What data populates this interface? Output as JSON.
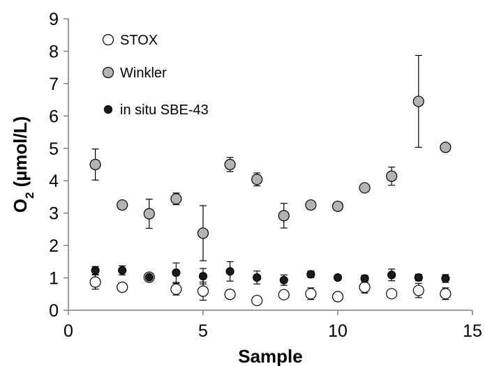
{
  "chart_data": {
    "type": "scatter",
    "title": "",
    "xlabel": "Sample",
    "ylabel": {
      "prefix": "O",
      "subscript": "2",
      "suffix": " (µmol/L)"
    },
    "xlim": [
      0,
      15
    ],
    "ylim": [
      0,
      9
    ],
    "xticks": [
      0,
      5,
      10,
      15
    ],
    "yticks": [
      0,
      1,
      2,
      3,
      4,
      5,
      6,
      7,
      8,
      9
    ],
    "grid": false,
    "legend_position": "top-left",
    "series": [
      {
        "name": "STOX",
        "marker": "open-circle",
        "color": "#000000",
        "fill": "#ffffff",
        "points": [
          {
            "x": 1,
            "y": 0.87,
            "err": 0.22
          },
          {
            "x": 2,
            "y": 0.71,
            "err": 0.08
          },
          {
            "x": 3,
            "y": 1.02,
            "err": 0.05
          },
          {
            "x": 4,
            "y": 0.65,
            "err": 0.18
          },
          {
            "x": 5,
            "y": 0.59,
            "err": 0.28
          },
          {
            "x": 6,
            "y": 0.49,
            "err": 0.08
          },
          {
            "x": 7,
            "y": 0.3,
            "err": 0.05
          },
          {
            "x": 8,
            "y": 0.48,
            "err": 0.08
          },
          {
            "x": 9,
            "y": 0.51,
            "err": 0.18
          },
          {
            "x": 10,
            "y": 0.42,
            "err": 0.05
          },
          {
            "x": 11,
            "y": 0.71,
            "err": 0.18
          },
          {
            "x": 12,
            "y": 0.51,
            "err": 0.1
          },
          {
            "x": 13,
            "y": 0.61,
            "err": 0.22
          },
          {
            "x": 14,
            "y": 0.51,
            "err": 0.18
          }
        ]
      },
      {
        "name": "Winkler",
        "marker": "filled-circle",
        "color": "#000000",
        "fill": "#b3b3b3",
        "points": [
          {
            "x": 1,
            "y": 4.5,
            "err": 0.48
          },
          {
            "x": 2,
            "y": 3.25,
            "err": 0.05
          },
          {
            "x": 3,
            "y": 2.98,
            "err": 0.45
          },
          {
            "x": 4,
            "y": 3.44,
            "err": 0.18
          },
          {
            "x": 5,
            "y": 2.38,
            "err": 0.85
          },
          {
            "x": 6,
            "y": 4.5,
            "err": 0.22
          },
          {
            "x": 7,
            "y": 4.04,
            "err": 0.2
          },
          {
            "x": 8,
            "y": 2.92,
            "err": 0.38
          },
          {
            "x": 9,
            "y": 3.25,
            "err": 0.05
          },
          {
            "x": 10,
            "y": 3.21,
            "err": 0.05
          },
          {
            "x": 11,
            "y": 3.78,
            "err": 0.12
          },
          {
            "x": 12,
            "y": 4.14,
            "err": 0.28
          },
          {
            "x": 13,
            "y": 6.45,
            "err": 1.42
          },
          {
            "x": 14,
            "y": 5.03,
            "err": 0.05
          }
        ]
      },
      {
        "name": "in situ SBE-43",
        "marker": "small-filled-circle",
        "color": "#000000",
        "fill": "#1a1a1a",
        "points": [
          {
            "x": 1,
            "y": 1.23,
            "err": 0.12
          },
          {
            "x": 2,
            "y": 1.23,
            "err": 0.14
          },
          {
            "x": 3,
            "y": 1.02,
            "err": 0.05
          },
          {
            "x": 4,
            "y": 1.16,
            "err": 0.3
          },
          {
            "x": 5,
            "y": 1.05,
            "err": 0.24
          },
          {
            "x": 6,
            "y": 1.2,
            "err": 0.3
          },
          {
            "x": 7,
            "y": 1.01,
            "err": 0.2
          },
          {
            "x": 8,
            "y": 0.93,
            "err": 0.16
          },
          {
            "x": 9,
            "y": 1.11,
            "err": 0.1
          },
          {
            "x": 10,
            "y": 1.01,
            "err": 0.05
          },
          {
            "x": 11,
            "y": 0.98,
            "err": 0.1
          },
          {
            "x": 12,
            "y": 1.09,
            "err": 0.18
          },
          {
            "x": 13,
            "y": 1.01,
            "err": 0.1
          },
          {
            "x": 14,
            "y": 0.98,
            "err": 0.12
          }
        ]
      }
    ]
  }
}
